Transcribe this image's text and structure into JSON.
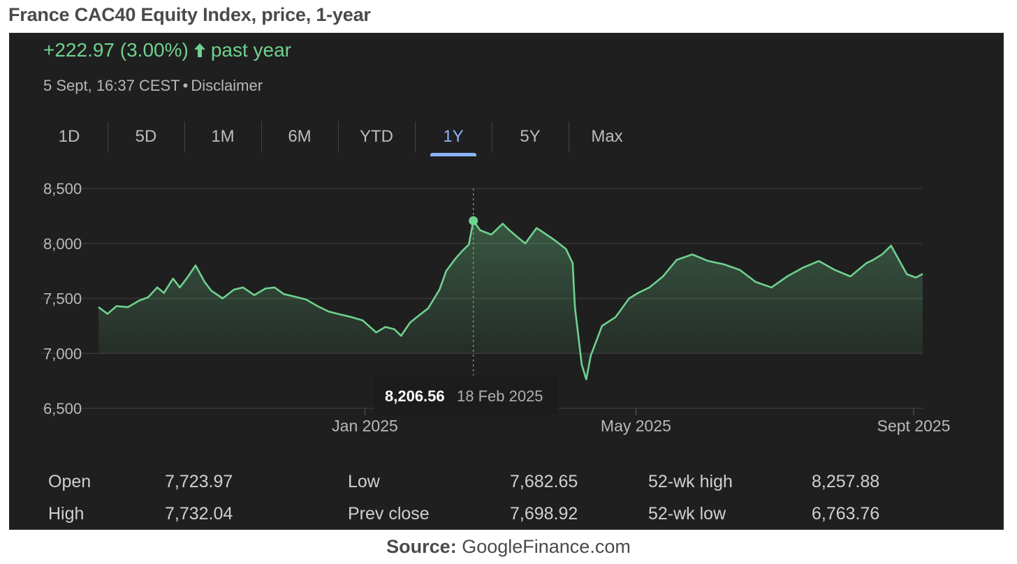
{
  "page_title": "France CAC40 Equity Index, price, 1-year",
  "header": {
    "change_text": "+222.97 (3.00%)",
    "change_period": "past year",
    "timestamp": "5 Sept, 16:37 CEST",
    "disclaimer_label": "Disclaimer",
    "accent_color": "#6fd18f"
  },
  "tabs": [
    {
      "label": "1D",
      "active": false
    },
    {
      "label": "5D",
      "active": false
    },
    {
      "label": "1M",
      "active": false
    },
    {
      "label": "6M",
      "active": false
    },
    {
      "label": "YTD",
      "active": false
    },
    {
      "label": "1Y",
      "active": true
    },
    {
      "label": "5Y",
      "active": false
    },
    {
      "label": "Max",
      "active": false
    }
  ],
  "tooltip": {
    "value": "8,206.56",
    "date": "18 Feb 2025"
  },
  "stats": [
    {
      "label": "Open",
      "value": "7,723.97"
    },
    {
      "label": "High",
      "value": "7,732.04"
    },
    {
      "label": "Low",
      "value": "7,682.65"
    },
    {
      "label": "Prev close",
      "value": "7,698.92"
    },
    {
      "label": "52-wk high",
      "value": "8,257.88"
    },
    {
      "label": "52-wk low",
      "value": "6,763.76"
    }
  ],
  "source": {
    "prefix": "Source:",
    "name": "GoogleFinance.com"
  },
  "chart_data": {
    "type": "area",
    "title": "",
    "xlabel": "",
    "ylabel": "",
    "ylim": [
      6500,
      8500
    ],
    "yticks": [
      6500,
      7000,
      7500,
      8000,
      8500
    ],
    "ytick_labels": [
      "6,500",
      "7,000",
      "7,500",
      "8,000",
      "8,500"
    ],
    "xticks": [
      {
        "label": "Jan 2025",
        "date": "2025-01-01"
      },
      {
        "label": "May 2025",
        "date": "2025-05-01"
      },
      {
        "label": "Sept 2025",
        "date": "2025-09-01"
      }
    ],
    "x_range": [
      "2024-09-05",
      "2025-09-05"
    ],
    "grid": true,
    "line_color": "#6fd18f",
    "highlight": {
      "date": "2025-02-18",
      "value": 8206.56
    },
    "series": [
      {
        "points": [
          [
            "2024-09-05",
            7420
          ],
          [
            "2024-09-09",
            7360
          ],
          [
            "2024-09-13",
            7430
          ],
          [
            "2024-09-18",
            7420
          ],
          [
            "2024-09-23",
            7480
          ],
          [
            "2024-09-27",
            7510
          ],
          [
            "2024-10-01",
            7600
          ],
          [
            "2024-10-04",
            7550
          ],
          [
            "2024-10-08",
            7680
          ],
          [
            "2024-10-11",
            7600
          ],
          [
            "2024-10-14",
            7680
          ],
          [
            "2024-10-18",
            7800
          ],
          [
            "2024-10-22",
            7650
          ],
          [
            "2024-10-25",
            7570
          ],
          [
            "2024-10-30",
            7500
          ],
          [
            "2024-11-04",
            7580
          ],
          [
            "2024-11-08",
            7600
          ],
          [
            "2024-11-13",
            7530
          ],
          [
            "2024-11-18",
            7590
          ],
          [
            "2024-11-22",
            7600
          ],
          [
            "2024-11-26",
            7540
          ],
          [
            "2024-12-02",
            7510
          ],
          [
            "2024-12-06",
            7490
          ],
          [
            "2024-12-11",
            7430
          ],
          [
            "2024-12-16",
            7380
          ],
          [
            "2024-12-20",
            7360
          ],
          [
            "2024-12-26",
            7330
          ],
          [
            "2024-12-31",
            7300
          ],
          [
            "2025-01-06",
            7190
          ],
          [
            "2025-01-10",
            7240
          ],
          [
            "2025-01-14",
            7220
          ],
          [
            "2025-01-17",
            7160
          ],
          [
            "2025-01-21",
            7280
          ],
          [
            "2025-01-24",
            7330
          ],
          [
            "2025-01-29",
            7410
          ],
          [
            "2025-02-03",
            7580
          ],
          [
            "2025-02-06",
            7750
          ],
          [
            "2025-02-10",
            7860
          ],
          [
            "2025-02-13",
            7930
          ],
          [
            "2025-02-16",
            7990
          ],
          [
            "2025-02-18",
            8206.56
          ],
          [
            "2025-02-21",
            8120
          ],
          [
            "2025-02-26",
            8080
          ],
          [
            "2025-03-03",
            8180
          ],
          [
            "2025-03-06",
            8120
          ],
          [
            "2025-03-10",
            8050
          ],
          [
            "2025-03-13",
            8000
          ],
          [
            "2025-03-18",
            8140
          ],
          [
            "2025-03-21",
            8100
          ],
          [
            "2025-03-26",
            8030
          ],
          [
            "2025-03-31",
            7950
          ],
          [
            "2025-04-03",
            7820
          ],
          [
            "2025-04-04",
            7420
          ],
          [
            "2025-04-07",
            6900
          ],
          [
            "2025-04-09",
            6763.76
          ],
          [
            "2025-04-11",
            6980
          ],
          [
            "2025-04-16",
            7250
          ],
          [
            "2025-04-22",
            7330
          ],
          [
            "2025-04-28",
            7500
          ],
          [
            "2025-05-02",
            7550
          ],
          [
            "2025-05-07",
            7600
          ],
          [
            "2025-05-13",
            7700
          ],
          [
            "2025-05-19",
            7850
          ],
          [
            "2025-05-26",
            7900
          ],
          [
            "2025-06-02",
            7840
          ],
          [
            "2025-06-09",
            7810
          ],
          [
            "2025-06-16",
            7760
          ],
          [
            "2025-06-23",
            7650
          ],
          [
            "2025-06-30",
            7600
          ],
          [
            "2025-07-07",
            7700
          ],
          [
            "2025-07-14",
            7780
          ],
          [
            "2025-07-21",
            7840
          ],
          [
            "2025-07-28",
            7760
          ],
          [
            "2025-08-04",
            7700
          ],
          [
            "2025-08-11",
            7820
          ],
          [
            "2025-08-14",
            7850
          ],
          [
            "2025-08-18",
            7900
          ],
          [
            "2025-08-22",
            7980
          ],
          [
            "2025-08-26",
            7830
          ],
          [
            "2025-08-29",
            7720
          ],
          [
            "2025-09-02",
            7690
          ],
          [
            "2025-09-05",
            7723
          ]
        ]
      }
    ]
  }
}
